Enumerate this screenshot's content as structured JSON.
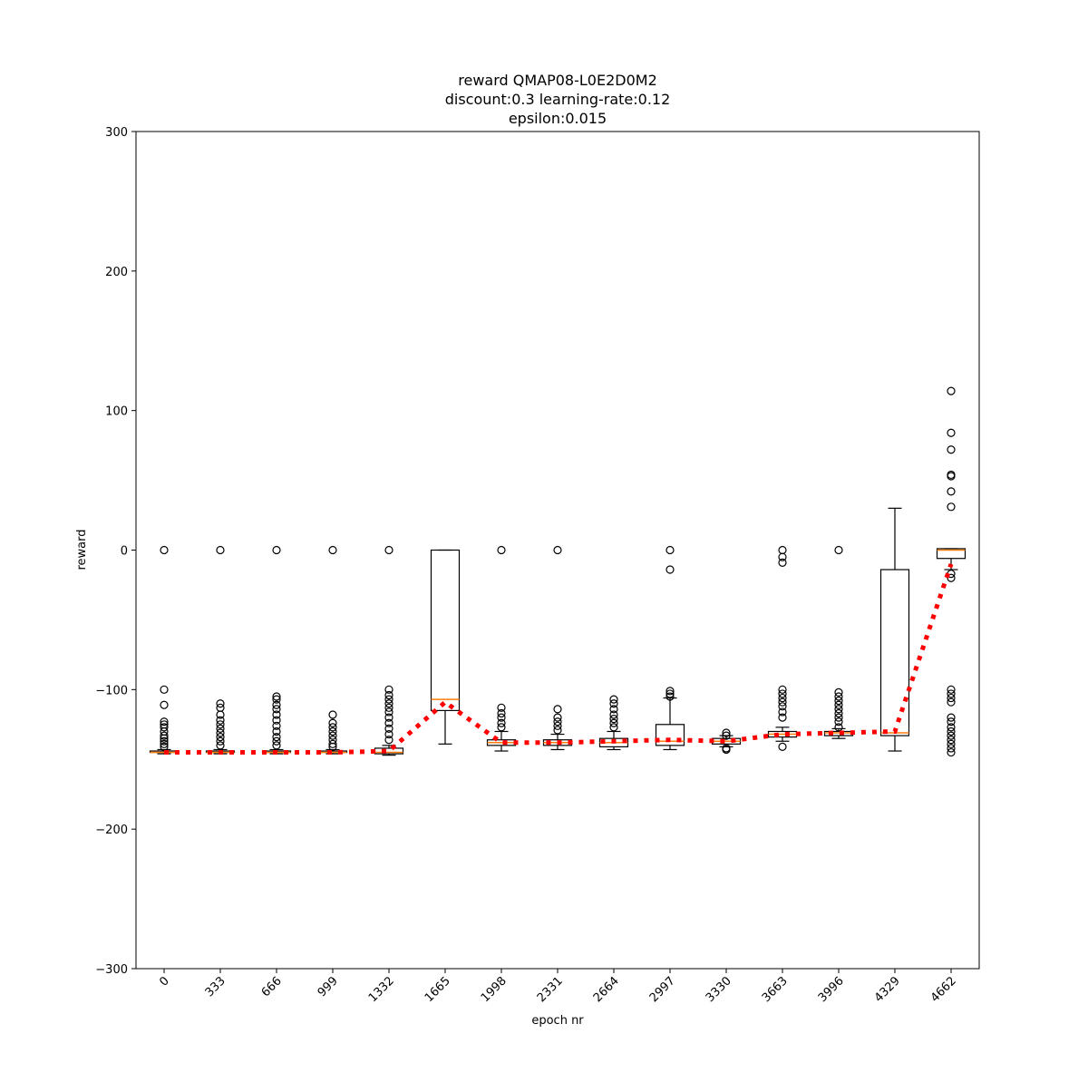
{
  "chart_data": {
    "type": "box",
    "title": [
      "reward QMAP08-L0E2D0M2",
      "discount:0.3 learning-rate:0.12",
      "epsilon:0.015"
    ],
    "x_label": "epoch nr",
    "y_label": "reward",
    "categories": [
      "0",
      "333",
      "666",
      "999",
      "1332",
      "1665",
      "1998",
      "2331",
      "2664",
      "2997",
      "3330",
      "3663",
      "3996",
      "4329",
      "4662"
    ],
    "boxes": [
      {
        "whislo": -146,
        "q1": -145,
        "med": -145,
        "q3": -144,
        "whishi": -143,
        "fliers": [
          0,
          -100,
          -111,
          -123,
          -125,
          -127,
          -130,
          -133,
          -135,
          -137,
          -139,
          -141
        ]
      },
      {
        "whislo": -146,
        "q1": -145,
        "med": -145,
        "q3": -144,
        "whishi": -143,
        "fliers": [
          0,
          -110,
          -113,
          -118,
          -122,
          -125,
          -128,
          -131,
          -134,
          -137,
          -140
        ]
      },
      {
        "whislo": -146,
        "q1": -145,
        "med": -145,
        "q3": -144,
        "whishi": -143,
        "fliers": [
          0,
          -105,
          -107,
          -111,
          -114,
          -118,
          -122,
          -126,
          -130,
          -134,
          -137,
          -140
        ]
      },
      {
        "whislo": -146,
        "q1": -145,
        "med": -145,
        "q3": -144,
        "whishi": -143,
        "fliers": [
          0,
          -118,
          -124,
          -127,
          -130,
          -133,
          -136,
          -139,
          -141
        ]
      },
      {
        "whislo": -147,
        "q1": -146,
        "med": -145,
        "q3": -142,
        "whishi": -140,
        "fliers": [
          0,
          -100,
          -104,
          -107,
          -110,
          -113,
          -116,
          -120,
          -124,
          -128,
          -132,
          -136
        ]
      },
      {
        "whislo": -139,
        "q1": -115,
        "med": -107,
        "q3": 0,
        "whishi": 0,
        "fliers": []
      },
      {
        "whislo": -144,
        "q1": -140,
        "med": -138,
        "q3": -136,
        "whishi": -130,
        "fliers": [
          0,
          -113,
          -117,
          -120,
          -124,
          -127
        ]
      },
      {
        "whislo": -143,
        "q1": -140,
        "med": -138,
        "q3": -136,
        "whishi": -132,
        "fliers": [
          0,
          -114,
          -120,
          -123,
          -126,
          -129
        ]
      },
      {
        "whislo": -143,
        "q1": -141,
        "med": -138,
        "q3": -135,
        "whishi": -130,
        "fliers": [
          -107,
          -110,
          -114,
          -118,
          -121,
          -124,
          -127
        ]
      },
      {
        "whislo": -143,
        "q1": -140,
        "med": -137,
        "q3": -125,
        "whishi": -106,
        "fliers": [
          0,
          -14,
          -101,
          -103,
          -105
        ]
      },
      {
        "whislo": -141,
        "q1": -139,
        "med": -137,
        "q3": -135,
        "whishi": -133,
        "fliers": [
          -131,
          -133,
          -142,
          -143
        ]
      },
      {
        "whislo": -137,
        "q1": -134,
        "med": -132,
        "q3": -130,
        "whishi": -127,
        "fliers": [
          0,
          -5,
          -9,
          -100,
          -103,
          -106,
          -109,
          -112,
          -116,
          -120,
          -141
        ]
      },
      {
        "whislo": -135,
        "q1": -133,
        "med": -131,
        "q3": -130,
        "whishi": -128,
        "fliers": [
          0,
          -102,
          -105,
          -108,
          -111,
          -114,
          -117,
          -120,
          -123,
          -127
        ]
      },
      {
        "whislo": -144,
        "q1": -133,
        "med": -131,
        "q3": -14,
        "whishi": 30,
        "fliers": []
      },
      {
        "whislo": -14,
        "q1": -6,
        "med": 0,
        "q3": 1,
        "whishi": 1,
        "fliers": [
          114,
          84,
          72,
          54,
          53,
          42,
          31,
          -17,
          -20,
          -100,
          -103,
          -106,
          -109,
          -120,
          -123,
          -127,
          -130,
          -133,
          -136,
          -139,
          -142,
          -145
        ]
      }
    ],
    "means": [
      -145,
      -145,
      -145,
      -145,
      -144,
      -109,
      -138,
      -138,
      -137,
      -136,
      -137,
      -132,
      -131,
      -130,
      -10
    ],
    "box_color": "#000000",
    "median_color": "#ff7f0e",
    "mean_color": "#ff0000",
    "ylim": [
      -300,
      300
    ],
    "yticks": [
      {
        "value": -300,
        "label": "−300"
      },
      {
        "value": -200,
        "label": "−200"
      },
      {
        "value": -100,
        "label": "−100"
      },
      0,
      100,
      200,
      300
    ]
  }
}
